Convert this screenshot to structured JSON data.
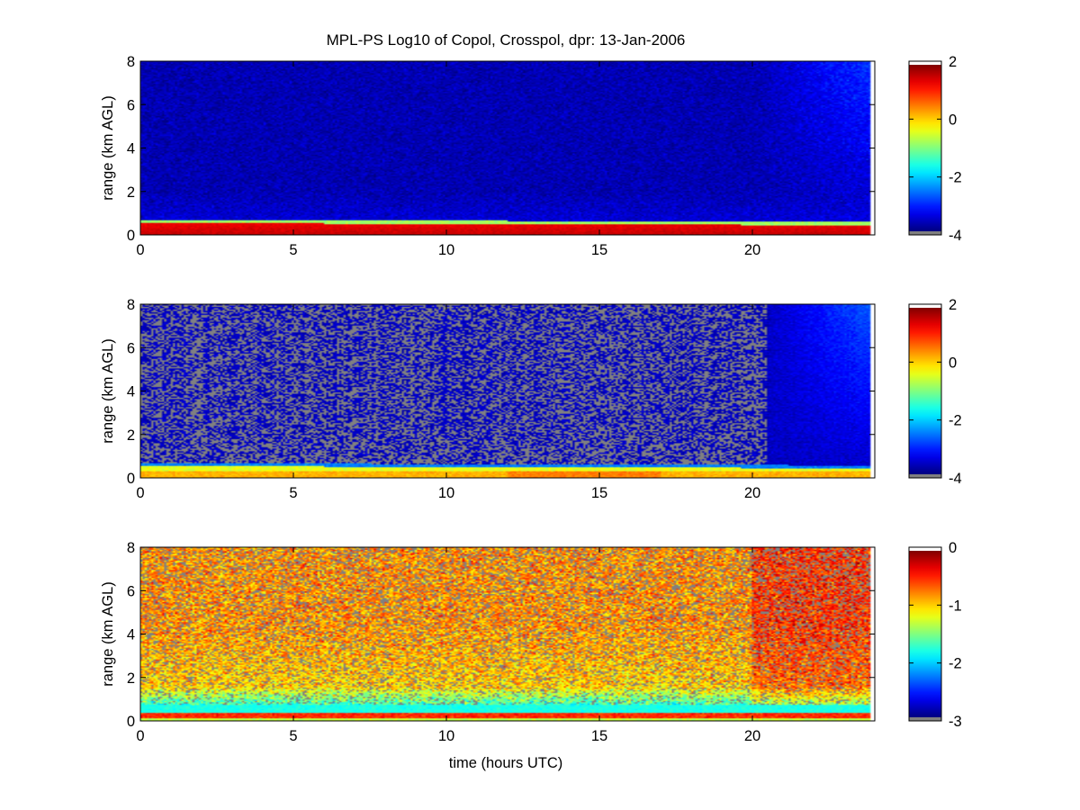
{
  "chart_data": {
    "type": "heatmap",
    "title": "MPL-PS Log10 of Copol, Crosspol, dpr: 13-Jan-2006",
    "xlabel": "time (hours UTC)",
    "x_ticks": [
      0,
      5,
      10,
      15,
      20
    ],
    "xlim": [
      0,
      24
    ],
    "colormap": "jet",
    "missing_color": "#808080",
    "panels": [
      {
        "name": "Copol",
        "ylabel": "range (km AGL)",
        "ylim": [
          0,
          8
        ],
        "y_ticks": [
          0,
          2,
          4,
          6,
          8
        ],
        "clim": [
          -4,
          2
        ],
        "colorbar_ticks": [
          -4,
          -2,
          0,
          2
        ],
        "features": {
          "surface_layer_top_km": 0.6,
          "surface_layer_value": 1.6,
          "background_value": -3.4,
          "late_noise_increase_after_hour": 20
        }
      },
      {
        "name": "Crosspol",
        "ylabel": "range (km AGL)",
        "ylim": [
          0,
          8
        ],
        "y_ticks": [
          0,
          2,
          4,
          6,
          8
        ],
        "clim": [
          -4,
          2
        ],
        "colorbar_ticks": [
          -4,
          -2,
          0,
          2
        ],
        "features": {
          "surface_layer_top_km": 0.6,
          "surface_layer_value": 0.2,
          "background_value": -3.6,
          "missing_fraction": 0.45,
          "late_noise_increase_after_hour": 20.5
        }
      },
      {
        "name": "dpr",
        "ylabel": "range (km AGL)",
        "ylim": [
          0,
          8
        ],
        "y_ticks": [
          0,
          2,
          4,
          6,
          8
        ],
        "clim": [
          -3,
          0
        ],
        "colorbar_ticks": [
          -3,
          -2,
          -1,
          0
        ],
        "features": {
          "surface_layer_top_km": 0.6,
          "surface_layer_value": -1.8,
          "background_value": -0.8,
          "missing_fraction": 0.15
        }
      }
    ]
  }
}
